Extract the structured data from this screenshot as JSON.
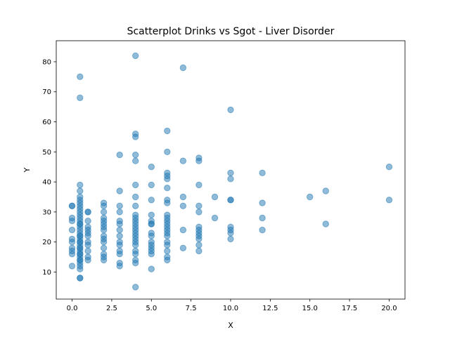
{
  "chart_data": {
    "type": "scatter",
    "title": "Scatterplot Drinks vs Sgot - Liver Disorder",
    "xlabel": "X",
    "ylabel": "Y",
    "xlim": [
      -1,
      21
    ],
    "ylim": [
      1,
      87
    ],
    "xticks": [
      0,
      2.5,
      5,
      7.5,
      10,
      12.5,
      15,
      17.5,
      20
    ],
    "xtick_labels": [
      "0.0",
      "2.5",
      "5.0",
      "7.5",
      "10.0",
      "12.5",
      "15.0",
      "17.5",
      "20.0"
    ],
    "yticks": [
      10,
      20,
      30,
      40,
      50,
      60,
      70,
      80
    ],
    "ytick_labels": [
      "10",
      "20",
      "30",
      "40",
      "50",
      "60",
      "70",
      "80"
    ],
    "grid": false,
    "point_color": "#1f77b4",
    "point_alpha": 0.5,
    "x": [
      0,
      0,
      0,
      0,
      0,
      0,
      0,
      0,
      0,
      0,
      0,
      0.5,
      0.5,
      0.5,
      0.5,
      0.5,
      0.5,
      0.5,
      0.5,
      0.5,
      0.5,
      0.5,
      0.5,
      0.5,
      0.5,
      0.5,
      0.5,
      0.5,
      0.5,
      0.5,
      0.5,
      0.5,
      0.5,
      0.5,
      0.5,
      0.5,
      0.5,
      0.5,
      0.5,
      0.5,
      0.5,
      0.5,
      0.5,
      0.5,
      0.5,
      0.5,
      0.5,
      0.5,
      1,
      1,
      1,
      1,
      1,
      1,
      1,
      1,
      1,
      1,
      1,
      1,
      2,
      2,
      2,
      2,
      2,
      2,
      2,
      2,
      2,
      2,
      2,
      2,
      2,
      2,
      2,
      3,
      3,
      3,
      3,
      3,
      3,
      3,
      3,
      3,
      3,
      3,
      3,
      3,
      3,
      4,
      4,
      4,
      4,
      4,
      4,
      4,
      4,
      4,
      4,
      4,
      4,
      4,
      4,
      4,
      4,
      4,
      4,
      4,
      4,
      4,
      4,
      4,
      4,
      5,
      5,
      5,
      5,
      5,
      5,
      5,
      5,
      5,
      5,
      5,
      5,
      5,
      5,
      5,
      6,
      6,
      6,
      6,
      6,
      6,
      6,
      6,
      6,
      6,
      6,
      6,
      6,
      6,
      6,
      6,
      6,
      6,
      6,
      6,
      6,
      7,
      7,
      7,
      7,
      7,
      7,
      8,
      8,
      8,
      8,
      8,
      8,
      8,
      8,
      8,
      8,
      8,
      8,
      9,
      9,
      10,
      10,
      10,
      10,
      10,
      10,
      10,
      10,
      10,
      12,
      12,
      12,
      12,
      15,
      16,
      16,
      20,
      20
    ],
    "y": [
      32,
      28,
      27,
      24,
      21,
      20,
      18,
      17,
      16,
      12,
      32,
      75,
      68,
      39,
      37,
      35,
      34,
      33,
      32,
      31,
      30,
      29,
      28,
      27,
      26,
      25,
      24,
      23,
      22,
      21,
      20,
      19,
      18,
      17,
      16,
      15,
      14,
      13,
      12,
      11,
      8,
      8,
      22,
      20,
      18,
      16,
      14,
      26,
      30,
      27,
      25,
      24,
      23,
      22,
      20,
      19,
      17,
      15,
      14,
      30,
      33,
      32,
      30,
      28,
      27,
      26,
      25,
      24,
      22,
      21,
      20,
      18,
      16,
      15,
      14,
      49,
      37,
      32,
      30,
      27,
      26,
      24,
      22,
      20,
      19,
      17,
      16,
      13,
      12,
      82,
      56,
      55,
      49,
      47,
      39,
      35,
      32,
      29,
      28,
      27,
      26,
      25,
      24,
      23,
      22,
      21,
      20,
      19,
      17,
      16,
      14,
      13,
      5,
      45,
      39,
      34,
      29,
      27,
      26,
      23,
      22,
      20,
      19,
      18,
      17,
      16,
      11,
      26,
      57,
      50,
      43,
      42,
      41,
      38,
      34,
      33,
      29,
      28,
      27,
      26,
      25,
      24,
      23,
      22,
      20,
      19,
      17,
      15,
      14,
      78,
      47,
      35,
      32,
      24,
      18,
      48,
      47,
      39,
      32,
      30,
      25,
      24,
      23,
      22,
      21,
      19,
      17,
      35,
      28,
      64,
      43,
      41,
      34,
      34,
      25,
      24,
      23,
      21,
      43,
      33,
      28,
      24,
      35,
      37,
      26,
      45,
      34
    ]
  }
}
